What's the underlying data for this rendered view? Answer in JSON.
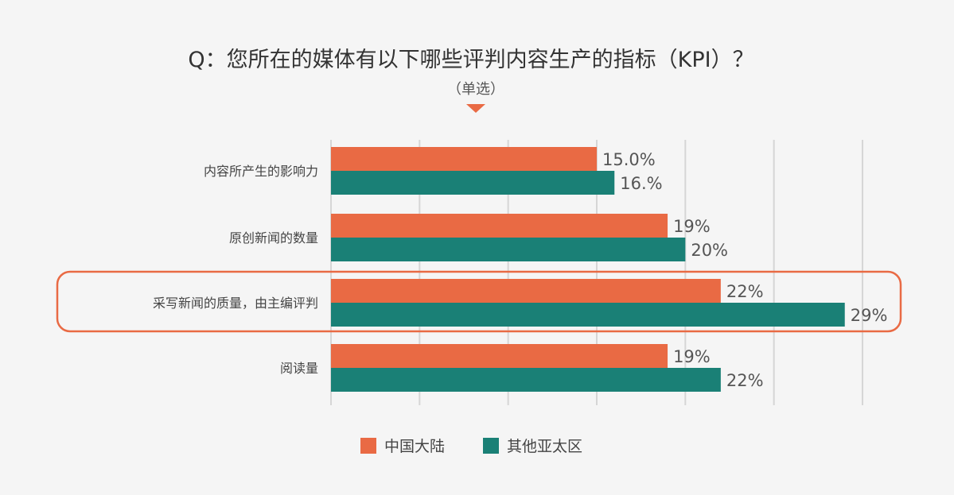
{
  "chart_data": {
    "type": "bar",
    "orientation": "horizontal",
    "title": "Q：您所在的媒体有以下哪些评判内容生产的指标（KPI）？",
    "subtitle": "（单选）",
    "categories": [
      "内容所产生的影响力",
      "原创新闻的数量",
      "采写新闻的质量，由主编评判",
      "阅读量"
    ],
    "series": [
      {
        "name": "中国大陆",
        "color": "#e96a44",
        "values": [
          15.0,
          19,
          22,
          19
        ],
        "labels": [
          "15.0%",
          "19%",
          "22%",
          "19%"
        ]
      },
      {
        "name": "其他亚太区",
        "color": "#1a8076",
        "values": [
          16,
          20,
          29,
          22
        ],
        "labels": [
          "16.%",
          "20%",
          "29%",
          "22%"
        ]
      }
    ],
    "xlim": [
      0,
      30
    ],
    "grid": true,
    "legend": "bottom-center",
    "highlight_category": "采写新闻的质量，由主编评判",
    "highlight_color": "#e96a44"
  }
}
